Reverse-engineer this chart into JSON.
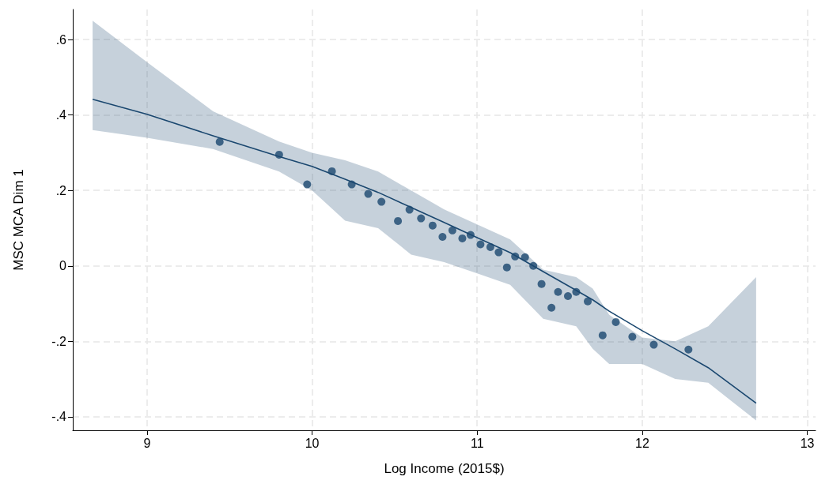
{
  "chart_data": {
    "type": "scatter",
    "xlabel": "Log Income (2015$)",
    "ylabel": "MSC MCA Dim 1",
    "xlim": [
      8.55,
      13.05
    ],
    "xticks": [
      9,
      10,
      11,
      12,
      13
    ],
    "ylim": [
      -0.436,
      0.68
    ],
    "yticks": [
      {
        "value": -0.4,
        "label": "-.4"
      },
      {
        "value": -0.2,
        "label": "-.2"
      },
      {
        "value": 0,
        "label": "0"
      },
      {
        "value": 0.2,
        "label": ".2"
      },
      {
        "value": 0.4,
        "label": ".4"
      },
      {
        "value": 0.6,
        "label": ".6"
      }
    ],
    "grid": true,
    "series": [
      {
        "color": "#1a476f",
        "marker": "circle",
        "x": [
          9.44,
          9.8,
          9.97,
          10.12,
          10.24,
          10.34,
          10.42,
          10.52,
          10.59,
          10.66,
          10.73,
          10.79,
          10.85,
          10.91,
          10.96,
          11.02,
          11.08,
          11.13,
          11.18,
          11.23,
          11.29,
          11.34,
          11.39,
          11.45,
          11.49,
          11.55,
          11.6,
          11.67,
          11.76,
          11.84,
          11.94,
          12.07,
          12.28
        ],
        "values": [
          0.329,
          0.295,
          0.216,
          0.251,
          0.216,
          0.191,
          0.17,
          0.119,
          0.149,
          0.126,
          0.107,
          0.077,
          0.094,
          0.073,
          0.082,
          0.057,
          0.05,
          0.036,
          -0.004,
          0.025,
          0.023,
          0.0,
          -0.048,
          -0.111,
          -0.069,
          -0.08,
          -0.069,
          -0.094,
          -0.184,
          -0.149,
          -0.188,
          -0.209,
          -0.222
        ]
      },
      {
        "type": "line",
        "color": "#1a476f",
        "marker": "none",
        "line_style": "solid",
        "x": [
          8.67,
          9.0,
          9.4,
          9.8,
          10.0,
          10.2,
          10.4,
          10.6,
          10.8,
          11.0,
          11.2,
          11.4,
          11.6,
          11.7,
          11.8,
          12.0,
          12.2,
          12.4,
          12.69
        ],
        "values": [
          0.442,
          0.402,
          0.345,
          0.29,
          0.264,
          0.23,
          0.195,
          0.155,
          0.115,
          0.075,
          0.035,
          -0.015,
          -0.065,
          -0.09,
          -0.12,
          -0.172,
          -0.22,
          -0.27,
          -0.364
        ],
        "upper": [
          0.65,
          0.54,
          0.41,
          0.33,
          0.3,
          0.28,
          0.25,
          0.2,
          0.15,
          0.11,
          0.07,
          -0.01,
          -0.03,
          -0.06,
          -0.13,
          -0.19,
          -0.2,
          -0.16,
          -0.03
        ],
        "lower": [
          0.36,
          0.34,
          0.31,
          0.25,
          0.2,
          0.12,
          0.1,
          0.03,
          0.01,
          -0.02,
          -0.05,
          -0.14,
          -0.16,
          -0.22,
          -0.26,
          -0.26,
          -0.3,
          -0.31,
          -0.41
        ]
      }
    ]
  }
}
